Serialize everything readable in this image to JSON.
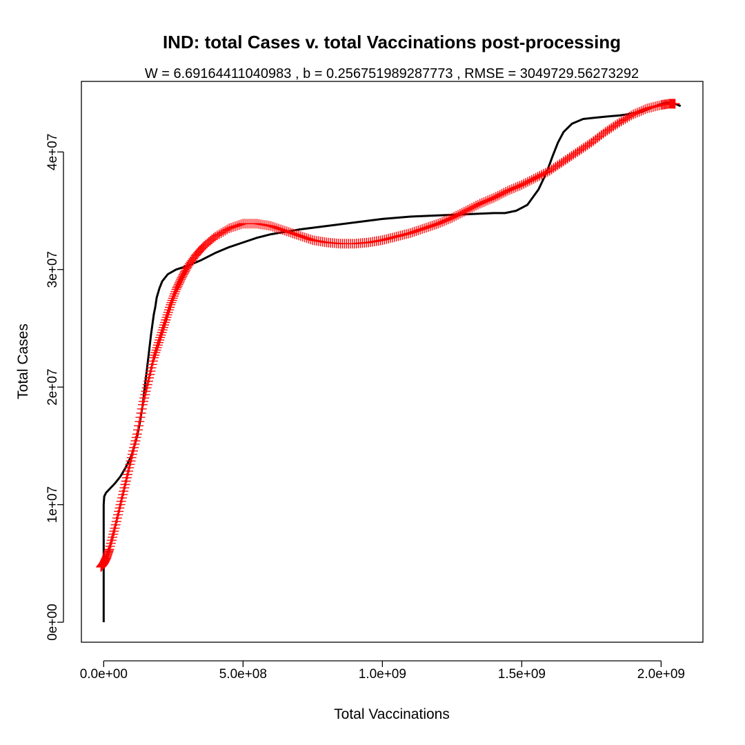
{
  "chart_data": {
    "type": "line",
    "title": "IND: total Cases v. total Vaccinations post-processing",
    "subtitle": "W = 6.69164411040983 , b = 0.256751989287773 , RMSE = 3049729.56273292",
    "xlabel": "Total Vaccinations",
    "ylabel": "Total Cases",
    "xlim": [
      -80000000,
      2150000000
    ],
    "ylim": [
      -1700000,
      46000000
    ],
    "x_ticks": [
      0,
      500000000,
      1000000000,
      1500000000,
      2000000000
    ],
    "x_tick_labels": [
      "0.0e+00",
      "5.0e+08",
      "1.0e+09",
      "1.5e+09",
      "2.0e+09"
    ],
    "y_ticks": [
      0,
      10000000,
      20000000,
      30000000,
      40000000
    ],
    "y_tick_labels": [
      "0e+00",
      "1e+07",
      "2e+07",
      "3e+07",
      "4e+07"
    ],
    "grid": false,
    "legend": "none",
    "series": [
      {
        "style": "line",
        "color": "#000000",
        "x": [
          0,
          0,
          0,
          0,
          0,
          0,
          2000000,
          8000000,
          20000000,
          40000000,
          60000000,
          80000000,
          100000000,
          120000000,
          130000000,
          140000000,
          150000000,
          160000000,
          170000000,
          180000000,
          185000000,
          190000000,
          200000000,
          210000000,
          230000000,
          260000000,
          300000000,
          350000000,
          400000000,
          450000000,
          500000000,
          550000000,
          600000000,
          650000000,
          700000000,
          800000000,
          900000000,
          1000000000,
          1100000000,
          1200000000,
          1300000000,
          1400000000,
          1440000000,
          1480000000,
          1520000000,
          1560000000,
          1590000000,
          1610000000,
          1630000000,
          1650000000,
          1680000000,
          1720000000,
          1760000000,
          1800000000,
          1850000000,
          1880000000,
          1900000000,
          1930000000,
          1960000000,
          1990000000,
          2020000000,
          2050000000,
          2070000000
        ],
        "y": [
          0,
          2000000,
          4000000,
          6000000,
          8000000,
          10000000,
          10700000,
          11000000,
          11300000,
          11800000,
          12400000,
          13200000,
          14200000,
          15800000,
          17000000,
          18500000,
          20500000,
          22500000,
          24500000,
          26200000,
          26800000,
          27600000,
          28400000,
          29000000,
          29600000,
          30000000,
          30300000,
          30800000,
          31400000,
          31900000,
          32300000,
          32700000,
          33000000,
          33200000,
          33400000,
          33700000,
          34000000,
          34300000,
          34500000,
          34600000,
          34700000,
          34800000,
          34800000,
          35000000,
          35500000,
          36800000,
          38300000,
          39600000,
          40800000,
          41700000,
          42400000,
          42800000,
          42900000,
          43000000,
          43100000,
          43200000,
          43300000,
          43400000,
          43700000,
          44000000,
          44200000,
          44100000,
          43900000
        ]
      },
      {
        "style": "plus-markers",
        "color": "#ff0000",
        "x": [
          -10000000,
          0,
          10000000,
          20000000,
          40000000,
          60000000,
          80000000,
          100000000,
          120000000,
          140000000,
          160000000,
          180000000,
          200000000,
          220000000,
          240000000,
          260000000,
          280000000,
          300000000,
          330000000,
          360000000,
          400000000,
          450000000,
          500000000,
          550000000,
          600000000,
          650000000,
          700000000,
          750000000,
          800000000,
          850000000,
          900000000,
          950000000,
          1000000000,
          1050000000,
          1100000000,
          1150000000,
          1200000000,
          1250000000,
          1300000000,
          1350000000,
          1400000000,
          1450000000,
          1500000000,
          1550000000,
          1600000000,
          1650000000,
          1700000000,
          1750000000,
          1800000000,
          1850000000,
          1900000000,
          1950000000,
          2000000000,
          2030000000,
          2050000000
        ],
        "y": [
          4700000,
          5000000,
          5500000,
          6200000,
          8000000,
          10000000,
          12000000,
          14000000,
          16000000,
          18500000,
          20500000,
          22500000,
          24000000,
          25500000,
          27000000,
          28300000,
          29300000,
          30200000,
          31200000,
          32000000,
          32800000,
          33500000,
          33900000,
          33900000,
          33700000,
          33300000,
          32900000,
          32500000,
          32300000,
          32200000,
          32200000,
          32300000,
          32500000,
          32800000,
          33100000,
          33500000,
          33900000,
          34400000,
          35000000,
          35600000,
          36100000,
          36700000,
          37200000,
          37800000,
          38400000,
          39200000,
          40000000,
          40800000,
          41700000,
          42500000,
          43200000,
          43700000,
          44000000,
          44100000,
          44100000
        ]
      }
    ]
  }
}
